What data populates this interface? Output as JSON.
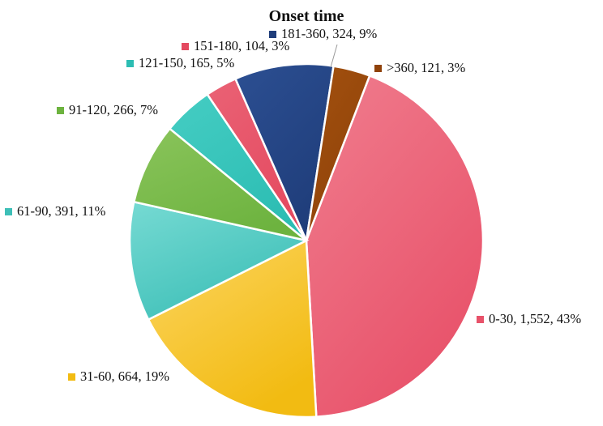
{
  "chart_data": {
    "type": "pie",
    "title": "Onset time",
    "slices": [
      {
        "label": "0-30, 1,552, 43%",
        "value": 1552,
        "color": "#e8526a",
        "highlight": "#f07d8e"
      },
      {
        "label": "31-60, 664, 19%",
        "value": 664,
        "color": "#f2bb12",
        "highlight": "#fcd561"
      },
      {
        "label": "61-90, 391, 11%",
        "value": 391,
        "color": "#3dbfb7",
        "highlight": "#76dad3"
      },
      {
        "label": "91-120, 266, 7%",
        "value": 266,
        "color": "#6db33f",
        "highlight": "#8ac45b"
      },
      {
        "label": "121-150, 165, 5%",
        "value": 165,
        "color": "#2cbdb3",
        "highlight": "#45cdc3"
      },
      {
        "label": "151-180, 104, 3%",
        "value": 104,
        "color": "#e44a60",
        "highlight": "#ea6275"
      },
      {
        "label": "181-360, 324, 9%",
        "value": 324,
        "color": "#1f3d7a",
        "highlight": "#2c4f92"
      },
      {
        "label": ">360, 121, 3%",
        "value": 121,
        "color": "#8f4209",
        "highlight": "#a3510f"
      }
    ],
    "legend": "none"
  }
}
